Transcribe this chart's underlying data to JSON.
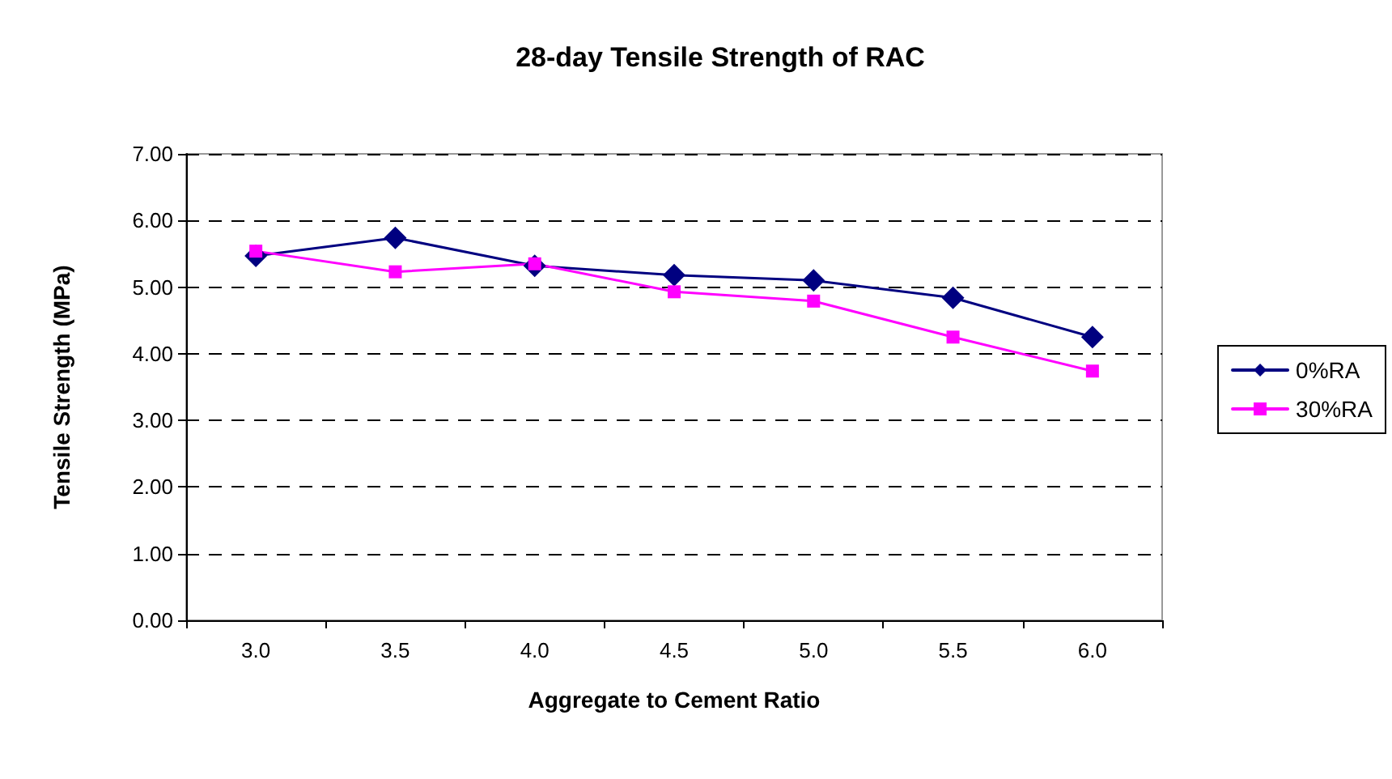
{
  "chart_data": {
    "type": "line",
    "title": "28-day Tensile Strength of RAC",
    "xlabel": "Aggregate to Cement Ratio",
    "ylabel": "Tensile Strength (MPa)",
    "categories": [
      "3.0",
      "3.5",
      "4.0",
      "4.5",
      "5.0",
      "5.5",
      "6.0"
    ],
    "series": [
      {
        "name": "0%RA",
        "color": "#000080",
        "marker": "diamond",
        "values": [
          5.47,
          5.74,
          5.32,
          5.18,
          5.1,
          4.84,
          4.25
        ]
      },
      {
        "name": "30%RA",
        "color": "#ff00ff",
        "marker": "square",
        "values": [
          5.54,
          5.23,
          5.35,
          4.93,
          4.79,
          4.25,
          3.74
        ]
      }
    ],
    "ylim": [
      0,
      7
    ],
    "yticks": [
      {
        "value": 0,
        "label": "0.00"
      },
      {
        "value": 1,
        "label": "1.00"
      },
      {
        "value": 2,
        "label": "2.00"
      },
      {
        "value": 3,
        "label": "3.00"
      },
      {
        "value": 4,
        "label": "4.00"
      },
      {
        "value": 5,
        "label": "5.00"
      },
      {
        "value": 6,
        "label": "6.00"
      },
      {
        "value": 7,
        "label": "7.00"
      }
    ],
    "grid": "y",
    "legend": "right",
    "line_style": "solid"
  }
}
